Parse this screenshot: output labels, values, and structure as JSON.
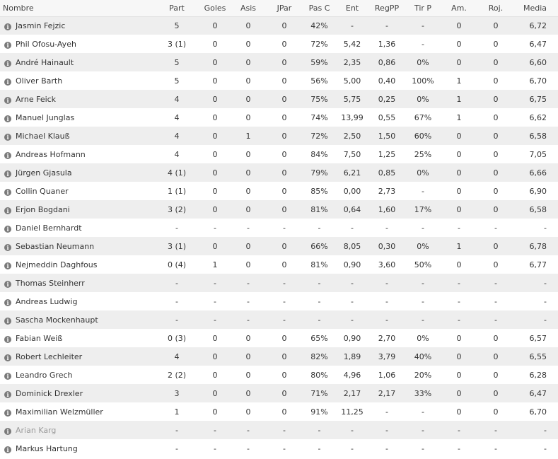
{
  "table": {
    "headers": [
      "Nombre",
      "Part",
      "Goles",
      "Asis",
      "JPar",
      "Pas C",
      "Ent",
      "RegPP",
      "Tir P",
      "Am.",
      "Roj.",
      "Media"
    ],
    "info_icon_glyph": "i",
    "rows": [
      {
        "name": "Jasmin Fejzic",
        "muted": false,
        "values": [
          "5",
          "0",
          "0",
          "0",
          "42%",
          "-",
          "-",
          "-",
          "0",
          "0",
          "6,72"
        ]
      },
      {
        "name": "Phil Ofosu-Ayeh",
        "muted": false,
        "values": [
          "3 (1)",
          "0",
          "0",
          "0",
          "72%",
          "5,42",
          "1,36",
          "-",
          "0",
          "0",
          "6,47"
        ]
      },
      {
        "name": "André Hainault",
        "muted": false,
        "values": [
          "5",
          "0",
          "0",
          "0",
          "59%",
          "2,35",
          "0,86",
          "0%",
          "0",
          "0",
          "6,60"
        ]
      },
      {
        "name": "Oliver Barth",
        "muted": false,
        "values": [
          "5",
          "0",
          "0",
          "0",
          "56%",
          "5,00",
          "0,40",
          "100%",
          "1",
          "0",
          "6,70"
        ]
      },
      {
        "name": "Arne Feick",
        "muted": false,
        "values": [
          "4",
          "0",
          "0",
          "0",
          "75%",
          "5,75",
          "0,25",
          "0%",
          "1",
          "0",
          "6,75"
        ]
      },
      {
        "name": "Manuel Junglas",
        "muted": false,
        "values": [
          "4",
          "0",
          "0",
          "0",
          "74%",
          "13,99",
          "0,55",
          "67%",
          "1",
          "0",
          "6,62"
        ]
      },
      {
        "name": "Michael Klauß",
        "muted": false,
        "values": [
          "4",
          "0",
          "1",
          "0",
          "72%",
          "2,50",
          "1,50",
          "60%",
          "0",
          "0",
          "6,58"
        ]
      },
      {
        "name": "Andreas Hofmann",
        "muted": false,
        "values": [
          "4",
          "0",
          "0",
          "0",
          "84%",
          "7,50",
          "1,25",
          "25%",
          "0",
          "0",
          "7,05"
        ]
      },
      {
        "name": "Jürgen Gjasula",
        "muted": false,
        "values": [
          "4 (1)",
          "0",
          "0",
          "0",
          "79%",
          "6,21",
          "0,85",
          "0%",
          "0",
          "0",
          "6,66"
        ]
      },
      {
        "name": "Collin Quaner",
        "muted": false,
        "values": [
          "1 (1)",
          "0",
          "0",
          "0",
          "85%",
          "0,00",
          "2,73",
          "-",
          "0",
          "0",
          "6,90"
        ]
      },
      {
        "name": "Erjon Bogdani",
        "muted": false,
        "values": [
          "3 (2)",
          "0",
          "0",
          "0",
          "81%",
          "0,64",
          "1,60",
          "17%",
          "0",
          "0",
          "6,58"
        ]
      },
      {
        "name": "Daniel Bernhardt",
        "muted": false,
        "values": [
          "-",
          "-",
          "-",
          "-",
          "-",
          "-",
          "-",
          "-",
          "-",
          "-",
          "-"
        ]
      },
      {
        "name": "Sebastian Neumann",
        "muted": false,
        "values": [
          "3 (1)",
          "0",
          "0",
          "0",
          "66%",
          "8,05",
          "0,30",
          "0%",
          "1",
          "0",
          "6,78"
        ]
      },
      {
        "name": "Nejmeddin Daghfous",
        "muted": false,
        "values": [
          "0 (4)",
          "1",
          "0",
          "0",
          "81%",
          "0,90",
          "3,60",
          "50%",
          "0",
          "0",
          "6,77"
        ]
      },
      {
        "name": "Thomas Steinherr",
        "muted": false,
        "values": [
          "-",
          "-",
          "-",
          "-",
          "-",
          "-",
          "-",
          "-",
          "-",
          "-",
          "-"
        ]
      },
      {
        "name": "Andreas Ludwig",
        "muted": false,
        "values": [
          "-",
          "-",
          "-",
          "-",
          "-",
          "-",
          "-",
          "-",
          "-",
          "-",
          "-"
        ]
      },
      {
        "name": "Sascha Mockenhaupt",
        "muted": false,
        "values": [
          "-",
          "-",
          "-",
          "-",
          "-",
          "-",
          "-",
          "-",
          "-",
          "-",
          "-"
        ]
      },
      {
        "name": "Fabian Weiß",
        "muted": false,
        "values": [
          "0 (3)",
          "0",
          "0",
          "0",
          "65%",
          "0,90",
          "2,70",
          "0%",
          "0",
          "0",
          "6,57"
        ]
      },
      {
        "name": "Robert Lechleiter",
        "muted": false,
        "values": [
          "4",
          "0",
          "0",
          "0",
          "82%",
          "1,89",
          "3,79",
          "40%",
          "0",
          "0",
          "6,55"
        ]
      },
      {
        "name": "Leandro Grech",
        "muted": false,
        "values": [
          "2 (2)",
          "0",
          "0",
          "0",
          "80%",
          "4,96",
          "1,06",
          "20%",
          "0",
          "0",
          "6,28"
        ]
      },
      {
        "name": "Dominick Drexler",
        "muted": false,
        "values": [
          "3",
          "0",
          "0",
          "0",
          "71%",
          "2,17",
          "2,17",
          "33%",
          "0",
          "0",
          "6,47"
        ]
      },
      {
        "name": "Maximilian Welzmüller",
        "muted": false,
        "values": [
          "1",
          "0",
          "0",
          "0",
          "91%",
          "11,25",
          "-",
          "-",
          "0",
          "0",
          "6,70"
        ]
      },
      {
        "name": "Arian Karg",
        "muted": true,
        "values": [
          "-",
          "-",
          "-",
          "-",
          "-",
          "-",
          "-",
          "-",
          "-",
          "-",
          "-"
        ]
      },
      {
        "name": "Markus Hartung",
        "muted": false,
        "values": [
          "-",
          "-",
          "-",
          "-",
          "-",
          "-",
          "-",
          "-",
          "-",
          "-",
          "-"
        ]
      }
    ]
  }
}
